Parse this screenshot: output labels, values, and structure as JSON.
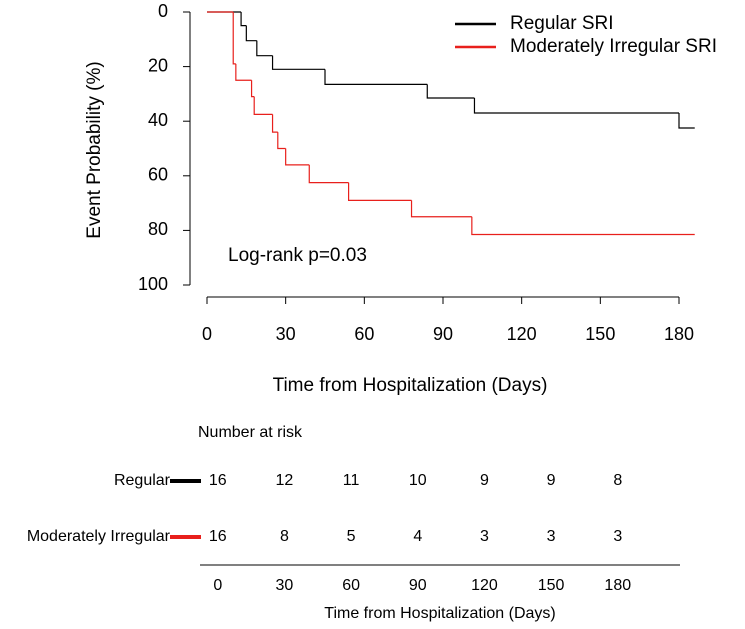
{
  "chart_data": [
    {
      "type": "step",
      "ylabel": "Event Probability (%)",
      "xlabel": "Time from Hospitalization (Days)",
      "annotation": "Log-rank p=0.03",
      "xlim": [
        0,
        180
      ],
      "xticks": [
        0,
        30,
        60,
        90,
        120,
        150,
        180
      ],
      "ylim": [
        0,
        100
      ],
      "yticks": [
        0,
        20,
        40,
        60,
        80,
        100
      ],
      "y_reversed": true,
      "legend": "top-right",
      "series": [
        {
          "name": "Regular SRI",
          "color": "#000000",
          "x": [
            0,
            13,
            15,
            19,
            25,
            45,
            84,
            102,
            180,
            186
          ],
          "values": [
            0,
            5,
            10.5,
            16,
            21,
            26.5,
            31.5,
            37,
            42.5,
            42.5
          ]
        },
        {
          "name": "Moderately Irregular SRI",
          "color": "#e8201c",
          "x": [
            0,
            10,
            11,
            17,
            18,
            25,
            27,
            30,
            39,
            54,
            78,
            101,
            186
          ],
          "values": [
            0,
            19,
            25,
            31,
            37.5,
            44,
            50,
            56,
            62.5,
            69,
            75,
            81.5,
            81.5
          ]
        }
      ]
    },
    {
      "type": "risk-table",
      "title": "Number at risk",
      "xlabel": "Time from Hospitalization (Days)",
      "xlim": [
        -8,
        208
      ],
      "xticks": [
        0,
        30,
        60,
        90,
        120,
        150,
        180
      ],
      "series": [
        {
          "name": "Regular",
          "color": "#000000",
          "values": [
            16,
            12,
            11,
            10,
            9,
            9,
            8
          ]
        },
        {
          "name": "Moderately Irregular",
          "color": "#e8201c",
          "values": [
            16,
            8,
            5,
            4,
            3,
            3,
            3
          ]
        }
      ]
    }
  ]
}
